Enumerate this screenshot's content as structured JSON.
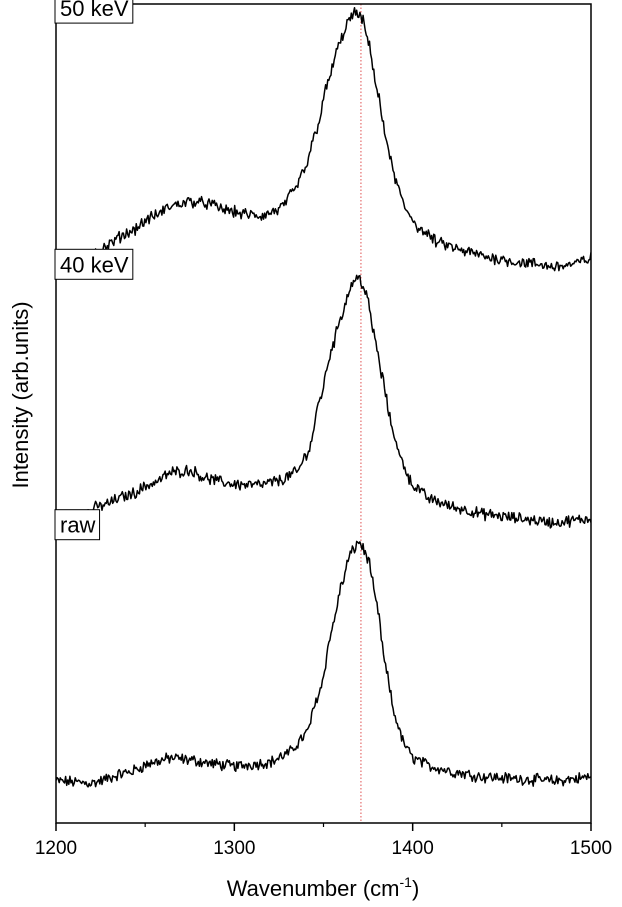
{
  "chart_data": {
    "type": "line",
    "xlabel": "Wavenumber (cm",
    "xlabel_superscript": "-1",
    "xlabel_suffix": ")",
    "ylabel": "Intensity (arb.units)",
    "xlim": [
      1200,
      1500
    ],
    "ylim": [
      0,
      3.9
    ],
    "x_ticks": [
      1200,
      1300,
      1400,
      1500
    ],
    "y_ticks_labeled": false,
    "reference_line": {
      "x": 1371,
      "color": "#e05050",
      "style": "dotted"
    },
    "line_color": "#000000",
    "series": [
      {
        "name": "raw",
        "offset": 0.18,
        "points": [
          [
            1200,
            0.02
          ],
          [
            1220,
            0.01
          ],
          [
            1240,
            0.06
          ],
          [
            1255,
            0.11
          ],
          [
            1265,
            0.13
          ],
          [
            1275,
            0.12
          ],
          [
            1290,
            0.1
          ],
          [
            1300,
            0.09
          ],
          [
            1310,
            0.1
          ],
          [
            1320,
            0.11
          ],
          [
            1330,
            0.15
          ],
          [
            1340,
            0.24
          ],
          [
            1348,
            0.45
          ],
          [
            1355,
            0.75
          ],
          [
            1360,
            0.95
          ],
          [
            1365,
            1.1
          ],
          [
            1370,
            1.16
          ],
          [
            1375,
            1.08
          ],
          [
            1380,
            0.85
          ],
          [
            1385,
            0.55
          ],
          [
            1390,
            0.33
          ],
          [
            1395,
            0.2
          ],
          [
            1400,
            0.13
          ],
          [
            1410,
            0.09
          ],
          [
            1425,
            0.06
          ],
          [
            1440,
            0.04
          ],
          [
            1460,
            0.03
          ],
          [
            1480,
            0.02
          ],
          [
            1490,
            0.03
          ],
          [
            1500,
            0.04
          ]
        ]
      },
      {
        "name": "40 keV",
        "offset": 1.42,
        "points": [
          [
            1200,
            0.0
          ],
          [
            1210,
            0.03
          ],
          [
            1225,
            0.09
          ],
          [
            1240,
            0.14
          ],
          [
            1255,
            0.2
          ],
          [
            1265,
            0.25
          ],
          [
            1275,
            0.26
          ],
          [
            1285,
            0.22
          ],
          [
            1295,
            0.2
          ],
          [
            1305,
            0.19
          ],
          [
            1315,
            0.19
          ],
          [
            1325,
            0.21
          ],
          [
            1335,
            0.25
          ],
          [
            1342,
            0.36
          ],
          [
            1348,
            0.6
          ],
          [
            1355,
            0.85
          ],
          [
            1360,
            1.0
          ],
          [
            1366,
            1.15
          ],
          [
            1370,
            1.18
          ],
          [
            1374,
            1.1
          ],
          [
            1378,
            0.92
          ],
          [
            1383,
            0.7
          ],
          [
            1388,
            0.48
          ],
          [
            1393,
            0.32
          ],
          [
            1400,
            0.19
          ],
          [
            1410,
            0.12
          ],
          [
            1425,
            0.08
          ],
          [
            1440,
            0.05
          ],
          [
            1460,
            0.03
          ],
          [
            1480,
            0.01
          ],
          [
            1490,
            0.02
          ],
          [
            1500,
            0.03
          ]
        ]
      },
      {
        "name": "50 keV",
        "offset": 2.64,
        "points": [
          [
            1200,
            0.0
          ],
          [
            1210,
            0.04
          ],
          [
            1225,
            0.09
          ],
          [
            1240,
            0.17
          ],
          [
            1255,
            0.25
          ],
          [
            1265,
            0.3
          ],
          [
            1275,
            0.32
          ],
          [
            1285,
            0.31
          ],
          [
            1295,
            0.28
          ],
          [
            1305,
            0.26
          ],
          [
            1315,
            0.25
          ],
          [
            1325,
            0.28
          ],
          [
            1333,
            0.36
          ],
          [
            1340,
            0.48
          ],
          [
            1346,
            0.66
          ],
          [
            1352,
            0.87
          ],
          [
            1358,
            1.05
          ],
          [
            1364,
            1.18
          ],
          [
            1368,
            1.22
          ],
          [
            1372,
            1.18
          ],
          [
            1376,
            1.05
          ],
          [
            1380,
            0.85
          ],
          [
            1385,
            0.62
          ],
          [
            1390,
            0.43
          ],
          [
            1396,
            0.28
          ],
          [
            1405,
            0.18
          ],
          [
            1415,
            0.12
          ],
          [
            1430,
            0.08
          ],
          [
            1445,
            0.05
          ],
          [
            1460,
            0.03
          ],
          [
            1480,
            0.01
          ],
          [
            1490,
            0.02
          ],
          [
            1500,
            0.05
          ]
        ]
      }
    ]
  }
}
